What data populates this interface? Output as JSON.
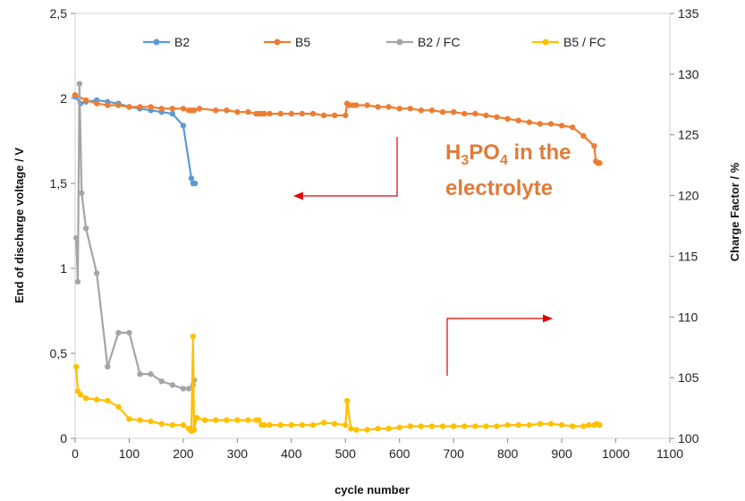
{
  "chart_data": {
    "type": "line",
    "xlabel": "cycle number",
    "ylabel_left": "End of discharge voltage / V",
    "ylabel_right": "Charge Factor / %",
    "xlim": [
      0,
      1100
    ],
    "xticks": [
      "0",
      "100",
      "200",
      "300",
      "400",
      "500",
      "600",
      "700",
      "800",
      "900",
      "1000",
      "1100"
    ],
    "ylim_left": [
      0,
      2.5
    ],
    "yticks_left": [
      "0",
      "0,5",
      "1",
      "1,5",
      "2",
      "2,5"
    ],
    "ylim_right": [
      100,
      135
    ],
    "yticks_right": [
      "100",
      "105",
      "110",
      "115",
      "120",
      "125",
      "130",
      "135"
    ],
    "grid": false,
    "legend_position": "top",
    "annotation": {
      "line1_pre": "H",
      "line1_sub1": "3",
      "line1_mid": "PO",
      "line1_sub2": "4",
      "line1_post": " in the",
      "line2": "electrolyte",
      "color": "#E07B39"
    },
    "arrow_color": "#E00000",
    "series": [
      {
        "name": "B2",
        "axis": "left",
        "color": "#5B9BD5",
        "x": [
          0,
          10,
          20,
          40,
          60,
          80,
          100,
          120,
          140,
          160,
          180,
          200,
          215,
          218,
          222
        ],
        "y": [
          2.01,
          1.97,
          1.98,
          1.99,
          1.98,
          1.97,
          1.95,
          1.94,
          1.93,
          1.92,
          1.91,
          1.84,
          1.53,
          1.5,
          1.5
        ]
      },
      {
        "name": "B5",
        "axis": "left",
        "color": "#ED7D31",
        "x": [
          0,
          20,
          40,
          60,
          80,
          100,
          120,
          140,
          160,
          180,
          200,
          210,
          215,
          220,
          230,
          260,
          280,
          300,
          320,
          335,
          340,
          345,
          350,
          360,
          380,
          400,
          420,
          440,
          460,
          480,
          500,
          503,
          508,
          515,
          520,
          540,
          560,
          580,
          600,
          620,
          640,
          660,
          680,
          700,
          720,
          740,
          760,
          780,
          800,
          820,
          840,
          860,
          880,
          900,
          920,
          940,
          960,
          963,
          967,
          970
        ],
        "y": [
          2.02,
          1.99,
          1.97,
          1.96,
          1.96,
          1.95,
          1.95,
          1.95,
          1.94,
          1.94,
          1.94,
          1.93,
          1.93,
          1.93,
          1.94,
          1.93,
          1.93,
          1.92,
          1.92,
          1.91,
          1.91,
          1.91,
          1.91,
          1.91,
          1.91,
          1.91,
          1.91,
          1.91,
          1.9,
          1.9,
          1.9,
          1.97,
          1.96,
          1.96,
          1.96,
          1.96,
          1.95,
          1.95,
          1.94,
          1.94,
          1.93,
          1.93,
          1.92,
          1.92,
          1.91,
          1.91,
          1.9,
          1.89,
          1.88,
          1.87,
          1.86,
          1.85,
          1.85,
          1.84,
          1.83,
          1.78,
          1.72,
          1.63,
          1.62,
          1.62
        ]
      },
      {
        "name": "B2 / FC",
        "axis": "right",
        "color": "#A5A5A5",
        "x": [
          2,
          5,
          8,
          12,
          20,
          40,
          60,
          80,
          100,
          120,
          140,
          160,
          180,
          200,
          210,
          218,
          220
        ],
        "y": [
          116.5,
          112.9,
          129.2,
          120.2,
          117.3,
          113.6,
          105.9,
          108.7,
          108.7,
          105.3,
          105.3,
          104.7,
          104.4,
          104.1,
          104.1,
          104.4,
          104.8
        ]
      },
      {
        "name": "B5 / FC",
        "axis": "right",
        "color": "#FFC000",
        "x": [
          2,
          5,
          10,
          20,
          40,
          60,
          80,
          100,
          120,
          140,
          160,
          180,
          200,
          210,
          215,
          218,
          220,
          225,
          240,
          260,
          280,
          300,
          320,
          335,
          340,
          345,
          350,
          360,
          380,
          400,
          420,
          440,
          460,
          480,
          500,
          503,
          510,
          520,
          540,
          560,
          580,
          600,
          620,
          640,
          660,
          680,
          700,
          720,
          740,
          760,
          780,
          800,
          820,
          840,
          860,
          880,
          900,
          920,
          940,
          950,
          960,
          965,
          970
        ],
        "y": [
          105.9,
          103.9,
          103.6,
          103.3,
          103.2,
          103.1,
          102.6,
          101.6,
          101.5,
          101.4,
          101.2,
          101.1,
          101.1,
          100.8,
          100.6,
          108.4,
          100.7,
          101.7,
          101.5,
          101.5,
          101.5,
          101.5,
          101.5,
          101.5,
          101.5,
          101.1,
          101.1,
          101.1,
          101.1,
          101.1,
          101.1,
          101.1,
          101.3,
          101.2,
          101.1,
          103.1,
          100.8,
          100.7,
          100.7,
          100.8,
          100.8,
          100.9,
          101.0,
          101.0,
          101.0,
          101.0,
          101.0,
          101.0,
          101.0,
          101.0,
          101.0,
          101.1,
          101.1,
          101.1,
          101.2,
          101.2,
          101.1,
          101.0,
          101.0,
          101.1,
          101.1,
          101.2,
          101.1
        ]
      }
    ]
  }
}
